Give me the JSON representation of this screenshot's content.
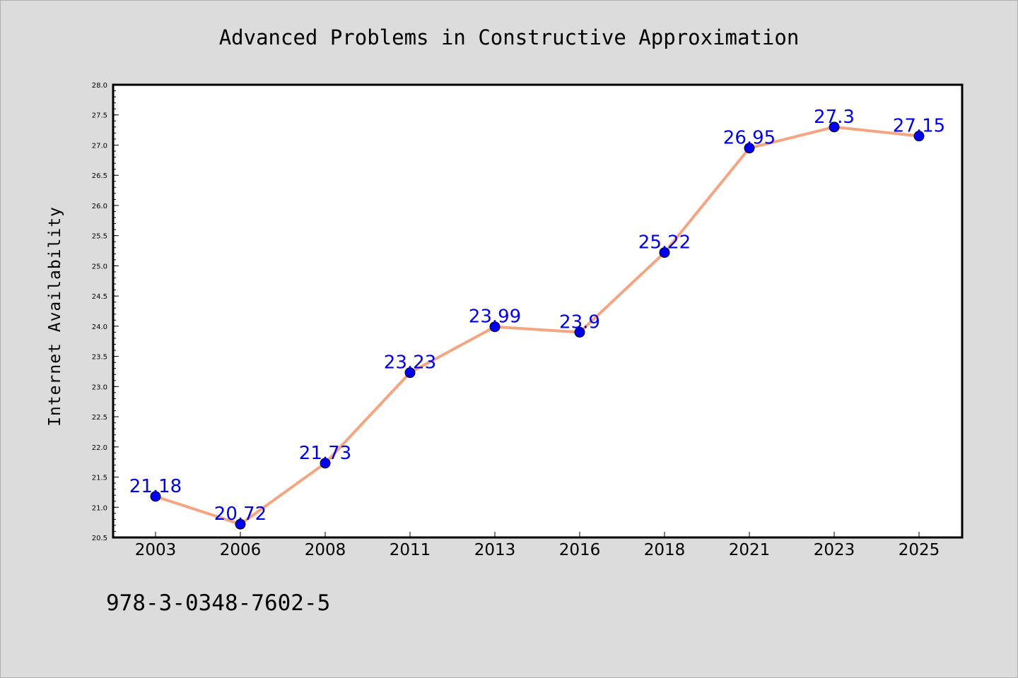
{
  "chart_data": {
    "type": "line",
    "title": "Advanced Problems in Constructive Approximation",
    "xlabel": "",
    "ylabel": "Internet Availability",
    "categories": [
      "2003",
      "2006",
      "2008",
      "2011",
      "2013",
      "2016",
      "2018",
      "2021",
      "2023",
      "2025"
    ],
    "values": [
      21.18,
      20.72,
      21.73,
      23.23,
      23.99,
      23.9,
      25.22,
      26.95,
      27.3,
      27.15
    ],
    "data_labels": [
      "21.18",
      "20.72",
      "21.73",
      "23.23",
      "23.99",
      "23.9",
      "25.22",
      "26.95",
      "27.3",
      "27.15"
    ],
    "ylim": [
      20.5,
      28.0
    ],
    "yticks": [
      "20.5",
      "21.0",
      "21.5",
      "22.0",
      "22.5",
      "23.0",
      "23.5",
      "24.0",
      "24.5",
      "25.0",
      "25.5",
      "26.0",
      "26.5",
      "27.0",
      "27.5",
      "28.0"
    ],
    "grid": false,
    "legend": "none",
    "line_color": "#f4a582",
    "marker_color": "#0000ee",
    "label_color": "#0000ee"
  },
  "footer": {
    "isbn": "978-3-0348-7602-5"
  }
}
